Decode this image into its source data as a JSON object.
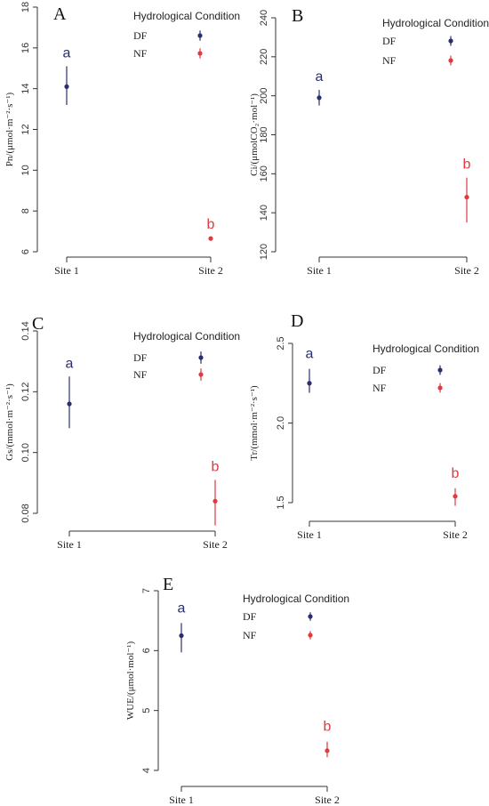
{
  "legend": {
    "title": "Hydrological Condition",
    "items": [
      "DF",
      "NF"
    ]
  },
  "colors": {
    "DF": "#2b2e6e",
    "NF": "#e03a3e",
    "axis": "#333333"
  },
  "chart_data": [
    {
      "type": "scatter",
      "panel_label": "A",
      "ylabel": "Pn/(μmol·m⁻²·s⁻¹)",
      "categories": [
        "Site 1",
        "Site 2"
      ],
      "ylim": [
        6,
        18
      ],
      "yticks": [
        6,
        8,
        10,
        12,
        14,
        16,
        18
      ],
      "series": [
        {
          "name": "DF",
          "x": "Site 1",
          "y": 14.1,
          "err_low": 13.2,
          "err_high": 15.1,
          "letter": "a"
        },
        {
          "name": "NF",
          "x": "Site 2",
          "y": 6.65,
          "err_low": 6.6,
          "err_high": 6.7,
          "letter": "b"
        }
      ],
      "legend_markers": {
        "DF": [
          16.8,
          16.55,
          17.05
        ],
        "NF": [
          15.85,
          15.6,
          16.1
        ]
      }
    },
    {
      "type": "scatter",
      "panel_label": "B",
      "ylabel": "Ci/(μmolCO₂·mol⁻¹)",
      "categories": [
        "Site 1",
        "Site 2"
      ],
      "ylim": [
        120,
        240
      ],
      "yticks": [
        120,
        140,
        160,
        180,
        200,
        220,
        240
      ],
      "series": [
        {
          "name": "DF",
          "x": "Site 1",
          "y": 199,
          "err_low": 195,
          "err_high": 203,
          "letter": "a"
        },
        {
          "name": "NF",
          "x": "Site 2",
          "y": 148,
          "err_low": 135,
          "err_high": 158,
          "letter": "b"
        }
      ],
      "legend_markers": {
        "DF": [
          229.5,
          227,
          232
        ],
        "NF": [
          218,
          215.5,
          220.5
        ]
      }
    },
    {
      "type": "scatter",
      "panel_label": "C",
      "ylabel": "Gs/(mmol·m⁻²·s⁻¹)",
      "categories": [
        "Site 1",
        "Site 2"
      ],
      "ylim": [
        0.08,
        0.14
      ],
      "yticks": [
        0.08,
        0.1,
        0.12,
        0.14
      ],
      "series": [
        {
          "name": "DF",
          "x": "Site 1",
          "y": 0.116,
          "err_low": 0.108,
          "err_high": 0.125,
          "letter": "a"
        },
        {
          "name": "NF",
          "x": "Site 2",
          "y": 0.084,
          "err_low": 0.076,
          "err_high": 0.091,
          "letter": "b"
        }
      ],
      "legend_markers": {
        "DF": [
          0.132,
          0.13,
          0.134
        ],
        "NF": [
          0.1255,
          0.1235,
          0.1275
        ]
      }
    },
    {
      "type": "scatter",
      "panel_label": "D",
      "ylabel": "Tr/(mmol·m⁻²·s⁻¹)",
      "categories": [
        "Site 1",
        "Site 2"
      ],
      "ylim": [
        1.5,
        2.5
      ],
      "yticks": [
        1.5,
        2.0,
        2.5
      ],
      "series": [
        {
          "name": "DF",
          "x": "Site 1",
          "y": 2.25,
          "err_low": 2.19,
          "err_high": 2.34,
          "letter": "a"
        },
        {
          "name": "NF",
          "x": "Site 2",
          "y": 1.54,
          "err_low": 1.48,
          "err_high": 1.59,
          "letter": "b"
        }
      ],
      "legend_markers": {
        "DF": [
          2.35,
          2.32,
          2.38
        ],
        "NF": [
          2.23,
          2.2,
          2.26
        ]
      }
    },
    {
      "type": "scatter",
      "panel_label": "E",
      "ylabel": "WUE/(μmol·mol⁻¹)",
      "categories": [
        "Site 1",
        "Site 2"
      ],
      "ylim": [
        4,
        7
      ],
      "yticks": [
        4,
        5,
        6,
        7
      ],
      "series": [
        {
          "name": "DF",
          "x": "Site 1",
          "y": 6.25,
          "err_low": 5.97,
          "err_high": 6.46,
          "letter": "a"
        },
        {
          "name": "NF",
          "x": "Site 2",
          "y": 4.33,
          "err_low": 4.22,
          "err_high": 4.48,
          "letter": "b"
        }
      ],
      "legend_markers": {
        "DF": [
          6.62,
          6.55,
          6.69
        ],
        "NF": [
          6.3,
          6.23,
          6.37
        ]
      }
    }
  ]
}
